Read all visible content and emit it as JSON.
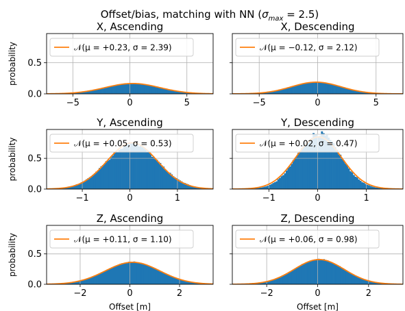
{
  "figure": {
    "suptitle_prefix": "Offset/bias, matching with NN (",
    "suptitle_sigma": "σ",
    "suptitle_sub": "max",
    "suptitle_suffix": " = 2.5)"
  },
  "colors": {
    "histogram": "#1f77b4",
    "fit_line": "#ff7f0e",
    "grid": "#b0b0b0"
  },
  "chart_data": [
    {
      "type": "bar",
      "title": "X, Ascending",
      "ylabel": "probability",
      "xlabel": "",
      "xlim": [
        -7.3,
        7.3
      ],
      "ylim": [
        0,
        0.97
      ],
      "xticks": [
        -5,
        0,
        5
      ],
      "xtick_labels": [
        "−5",
        "0",
        "5"
      ],
      "yticks": [
        0,
        0.5
      ],
      "ytick_labels": [
        "0.0",
        "0.5"
      ],
      "grid": true,
      "legend_position": "top-left",
      "histogram": {
        "name": "",
        "x_range": [
          -7.2,
          7.2
        ],
        "mean": 0.23,
        "std": 2.39,
        "noise": 0.01
      },
      "fit": {
        "mu": 0.23,
        "sigma": 2.39
      },
      "legend": "𝒩(μ = +0.23, σ = 2.39)"
    },
    {
      "type": "bar",
      "title": "X, Descending",
      "ylabel": "",
      "xlabel": "",
      "xlim": [
        -7.3,
        7.3
      ],
      "ylim": [
        0,
        0.97
      ],
      "xticks": [
        -5,
        0,
        5
      ],
      "xtick_labels": [
        "−5",
        "0",
        "5"
      ],
      "yticks": [
        0,
        0.5
      ],
      "ytick_labels": [
        "",
        ""
      ],
      "grid": true,
      "legend_position": "top-left",
      "histogram": {
        "name": "",
        "x_range": [
          -7.2,
          7.2
        ],
        "mean": -0.12,
        "std": 2.12,
        "noise": 0.01
      },
      "fit": {
        "mu": -0.12,
        "sigma": 2.12
      },
      "legend": "𝒩(μ = −0.12, σ = 2.12)"
    },
    {
      "type": "bar",
      "title": "Y, Ascending",
      "ylabel": "probability",
      "xlabel": "",
      "xlim": [
        -1.75,
        1.75
      ],
      "ylim": [
        0,
        0.97
      ],
      "xticks": [
        -1,
        0,
        1
      ],
      "xtick_labels": [
        "−1",
        "0",
        "1"
      ],
      "yticks": [
        0,
        0.5
      ],
      "ytick_labels": [
        "0.0",
        "0.5"
      ],
      "grid": true,
      "legend_position": "top-left",
      "histogram": {
        "name": "",
        "x_range": [
          -1.55,
          1.55
        ],
        "mean": 0.05,
        "std": 0.55,
        "noise": 0.04
      },
      "fit": {
        "mu": 0.05,
        "sigma": 0.53
      },
      "legend": "𝒩(μ = +0.05, σ = 0.53)"
    },
    {
      "type": "bar",
      "title": "Y, Descending",
      "ylabel": "",
      "xlabel": "",
      "xlim": [
        -1.75,
        1.75
      ],
      "ylim": [
        0,
        0.97
      ],
      "xticks": [
        -1,
        0,
        1
      ],
      "xtick_labels": [
        "−1",
        "0",
        "1"
      ],
      "yticks": [
        0,
        0.5
      ],
      "ytick_labels": [
        "",
        ""
      ],
      "grid": true,
      "legend_position": "top-left",
      "histogram": {
        "name": "",
        "x_range": [
          -1.55,
          1.55
        ],
        "mean": 0.02,
        "std": 0.44,
        "noise": 0.05
      },
      "fit": {
        "mu": 0.02,
        "sigma": 0.47
      },
      "legend": "𝒩(μ = +0.02, σ = 0.47)"
    },
    {
      "type": "bar",
      "title": "Z, Ascending",
      "ylabel": "probability",
      "xlabel": "Offset [m]",
      "xlim": [
        -3.35,
        3.35
      ],
      "ylim": [
        0,
        0.97
      ],
      "xticks": [
        -2,
        0,
        2
      ],
      "xtick_labels": [
        "−2",
        "0",
        "2"
      ],
      "yticks": [
        0,
        0.5
      ],
      "ytick_labels": [
        "0.0",
        "0.5"
      ],
      "grid": true,
      "legend_position": "top-left",
      "histogram": {
        "name": "",
        "x_range": [
          -3.1,
          3.1
        ],
        "mean": 0.11,
        "std": 1.08,
        "noise": 0.02
      },
      "fit": {
        "mu": 0.11,
        "sigma": 1.1
      },
      "legend": "𝒩(μ = +0.11, σ = 1.10)"
    },
    {
      "type": "bar",
      "title": "Z, Descending",
      "ylabel": "",
      "xlabel": "Offset [m]",
      "xlim": [
        -3.35,
        3.35
      ],
      "ylim": [
        0,
        0.97
      ],
      "xticks": [
        -2,
        0,
        2
      ],
      "xtick_labels": [
        "−2",
        "0",
        "2"
      ],
      "yticks": [
        0,
        0.5
      ],
      "ytick_labels": [
        "",
        ""
      ],
      "grid": true,
      "legend_position": "top-left",
      "histogram": {
        "name": "",
        "x_range": [
          -3.1,
          3.1
        ],
        "mean": 0.06,
        "std": 0.96,
        "noise": 0.02
      },
      "fit": {
        "mu": 0.06,
        "sigma": 0.98
      },
      "legend": "𝒩(μ = +0.06, σ = 0.98)"
    }
  ]
}
